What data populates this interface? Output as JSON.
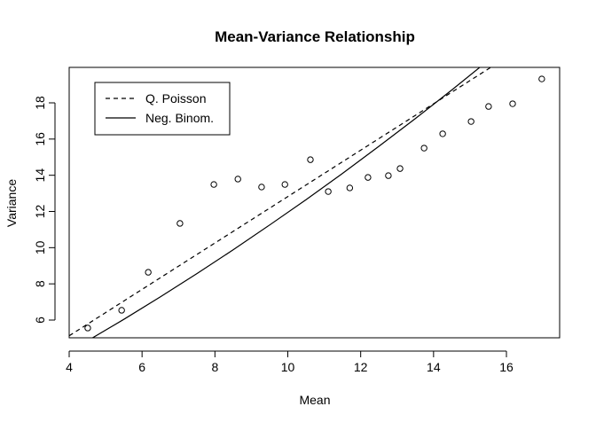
{
  "chart_data": {
    "type": "scatter",
    "title": "Mean-Variance Relationship",
    "x_label": "Mean",
    "y_label": "Variance",
    "xlim": [
      4,
      17.46
    ],
    "ylim": [
      5.02,
      19.96
    ],
    "xticks": [
      4,
      6,
      8,
      10,
      12,
      14,
      16
    ],
    "yticks": [
      6,
      8,
      10,
      12,
      14,
      16,
      18
    ],
    "legend": "top-left",
    "series": [
      {
        "mode": "points",
        "color": "#000000",
        "x": [
          4.51,
          5.44,
          6.17,
          7.04,
          7.97,
          8.63,
          9.28,
          9.92,
          10.62,
          11.11,
          11.7,
          12.2,
          12.76,
          13.08,
          13.74,
          14.25,
          15.03,
          15.51,
          16.17,
          16.97
        ],
        "values": [
          5.56,
          6.54,
          8.64,
          11.34,
          13.49,
          13.79,
          13.35,
          13.49,
          14.86,
          13.1,
          13.3,
          13.88,
          13.98,
          14.37,
          15.5,
          16.29,
          16.97,
          17.8,
          17.95,
          19.32
        ]
      },
      {
        "name": "Q. Poisson",
        "mode": "lines",
        "line_style": "dashed",
        "color": "#000000",
        "x": [
          4,
          15.6
        ],
        "values": [
          5.13,
          20.0
        ]
      },
      {
        "name": "Neg. Binom.",
        "mode": "lines",
        "line_style": "solid",
        "color": "#000000",
        "x": [
          4.5,
          5.5,
          6.5,
          7.5,
          8.5,
          9.5,
          10.5,
          11.5,
          12.5,
          13.5,
          14.5,
          15.5
        ],
        "values": [
          4.85,
          6.04,
          7.28,
          8.56,
          9.88,
          11.25,
          12.65,
          14.1,
          15.6,
          17.13,
          18.71,
          20.34
        ]
      }
    ]
  }
}
